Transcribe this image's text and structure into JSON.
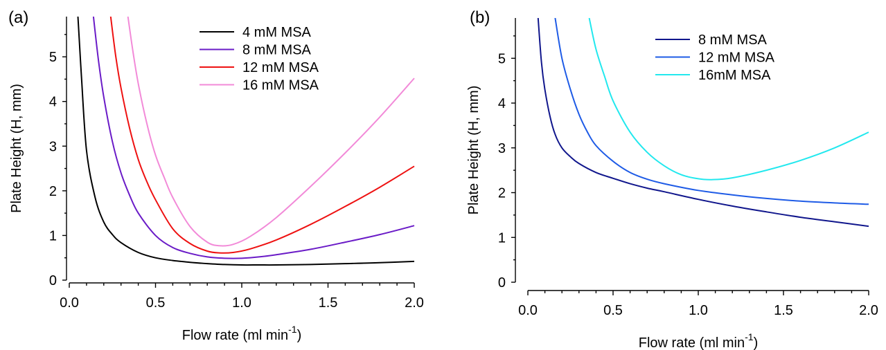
{
  "chart_data": [
    {
      "type": "line",
      "panel_label": "(a)",
      "xlabel": "Flow rate (ml min",
      "xlabel_sup": "-1",
      "xlabel_end": ")",
      "ylabel": "Plate Height (H, mm)",
      "xlim": [
        0,
        2.0
      ],
      "ylim": [
        0,
        5.9
      ],
      "xticks": [
        "0.0",
        "0.5",
        "1.0",
        "1.5",
        "2.0"
      ],
      "yticks": [
        "0",
        "1",
        "2",
        "3",
        "4",
        "5"
      ],
      "legend_position": "top-right",
      "series": [
        {
          "name": "4 mM MSA",
          "color": "#000000",
          "x": [
            0.05,
            0.07,
            0.1,
            0.15,
            0.2,
            0.25,
            0.3,
            0.4,
            0.5,
            0.6,
            0.7,
            0.8,
            0.9,
            1.0,
            1.1,
            1.2,
            1.4,
            1.6,
            1.8,
            2.0
          ],
          "y": [
            5.9,
            4.6,
            2.9,
            1.85,
            1.3,
            1.02,
            0.84,
            0.62,
            0.5,
            0.44,
            0.4,
            0.37,
            0.35,
            0.34,
            0.34,
            0.34,
            0.35,
            0.37,
            0.39,
            0.42
          ]
        },
        {
          "name": "8 mM MSA",
          "color": "#6a1bc7",
          "x": [
            0.14,
            0.17,
            0.2,
            0.25,
            0.3,
            0.35,
            0.4,
            0.5,
            0.6,
            0.7,
            0.8,
            0.9,
            1.0,
            1.1,
            1.2,
            1.4,
            1.6,
            1.8,
            2.0
          ],
          "y": [
            5.9,
            4.9,
            4.1,
            3.1,
            2.4,
            1.9,
            1.5,
            1.0,
            0.73,
            0.6,
            0.52,
            0.49,
            0.49,
            0.52,
            0.57,
            0.69,
            0.85,
            1.02,
            1.22
          ]
        },
        {
          "name": "12 mM MSA",
          "color": "#ee1111",
          "x": [
            0.24,
            0.27,
            0.3,
            0.35,
            0.4,
            0.45,
            0.5,
            0.6,
            0.7,
            0.8,
            0.87,
            0.95,
            1.05,
            1.2,
            1.4,
            1.6,
            1.8,
            2.0
          ],
          "y": [
            5.9,
            5.0,
            4.3,
            3.4,
            2.7,
            2.2,
            1.8,
            1.15,
            0.82,
            0.65,
            0.61,
            0.62,
            0.7,
            0.9,
            1.25,
            1.65,
            2.08,
            2.55
          ]
        },
        {
          "name": "16 mM MSA",
          "color": "#f28ad8",
          "x": [
            0.34,
            0.37,
            0.4,
            0.45,
            0.5,
            0.55,
            0.6,
            0.7,
            0.8,
            0.87,
            0.95,
            1.05,
            1.2,
            1.4,
            1.6,
            1.8,
            2.0
          ],
          "y": [
            5.9,
            5.1,
            4.4,
            3.5,
            2.8,
            2.3,
            1.85,
            1.2,
            0.85,
            0.77,
            0.8,
            0.98,
            1.4,
            2.1,
            2.85,
            3.65,
            4.52
          ]
        }
      ]
    },
    {
      "type": "line",
      "panel_label": "(b)",
      "xlabel": "Flow rate (ml min",
      "xlabel_sup": "-1",
      "xlabel_end": ")",
      "ylabel": "Plate Height (H, mm)",
      "xlim": [
        0,
        2.0
      ],
      "ylim": [
        0,
        5.9
      ],
      "xticks": [
        "0.0",
        "0.5",
        "1.0",
        "1.5",
        "2.0"
      ],
      "yticks": [
        "0",
        "1",
        "2",
        "3",
        "4",
        "5"
      ],
      "legend_position": "top-right",
      "series": [
        {
          "name": "8 mM MSA",
          "color": "#10168c",
          "x": [
            0.06,
            0.08,
            0.1,
            0.13,
            0.16,
            0.2,
            0.25,
            0.3,
            0.4,
            0.5,
            0.6,
            0.7,
            0.8,
            1.0,
            1.2,
            1.4,
            1.6,
            1.8,
            2.0
          ],
          "y": [
            5.9,
            4.9,
            4.3,
            3.7,
            3.3,
            3.0,
            2.8,
            2.65,
            2.45,
            2.32,
            2.2,
            2.1,
            2.02,
            1.85,
            1.7,
            1.57,
            1.45,
            1.35,
            1.25
          ]
        },
        {
          "name": "12 mM MSA",
          "color": "#1e5be6",
          "x": [
            0.16,
            0.2,
            0.25,
            0.3,
            0.35,
            0.4,
            0.5,
            0.6,
            0.7,
            0.8,
            1.0,
            1.2,
            1.4,
            1.6,
            1.8,
            2.0
          ],
          "y": [
            5.9,
            5.0,
            4.3,
            3.75,
            3.35,
            3.05,
            2.7,
            2.45,
            2.3,
            2.2,
            2.05,
            1.95,
            1.87,
            1.81,
            1.77,
            1.74
          ]
        },
        {
          "name": "16mM MSA",
          "color": "#22e8ee",
          "x": [
            0.36,
            0.4,
            0.45,
            0.5,
            0.6,
            0.7,
            0.8,
            0.9,
            1.0,
            1.08,
            1.2,
            1.4,
            1.6,
            1.8,
            2.0
          ],
          "y": [
            5.9,
            5.2,
            4.6,
            4.05,
            3.35,
            2.9,
            2.6,
            2.4,
            2.31,
            2.29,
            2.33,
            2.5,
            2.72,
            3.0,
            3.35
          ]
        }
      ]
    }
  ]
}
